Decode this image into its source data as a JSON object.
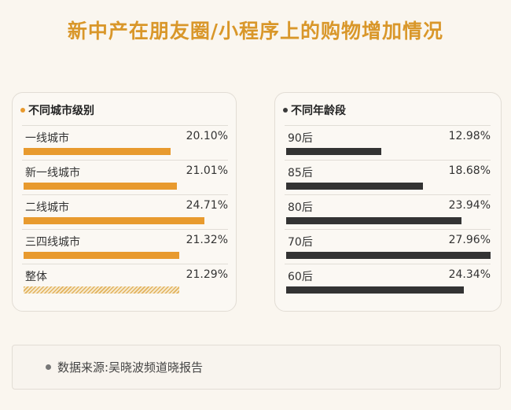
{
  "title": "新中产在朋友圈/小程序上的购物增加情况",
  "source": "数据来源:吴晓波频道晓报告",
  "chart_data": [
    {
      "type": "bar",
      "title": "不同城市级别",
      "categories": [
        "一线城市",
        "新一线城市",
        "二线城市",
        "三四线城市",
        "整体"
      ],
      "values": [
        20.1,
        21.01,
        24.71,
        21.32,
        21.29
      ],
      "labels": [
        "20.10%",
        "21.01%",
        "24.71%",
        "21.32%",
        "21.29%"
      ],
      "max": 27.96,
      "color": "#e89a2e"
    },
    {
      "type": "bar",
      "title": "不同年龄段",
      "categories": [
        "90后",
        "85后",
        "80后",
        "70后",
        "60后"
      ],
      "values": [
        12.98,
        18.68,
        23.94,
        27.96,
        24.34
      ],
      "labels": [
        "12.98%",
        "18.68%",
        "23.94%",
        "27.96%",
        "24.34%"
      ],
      "max": 27.96,
      "color": "#333333"
    }
  ]
}
